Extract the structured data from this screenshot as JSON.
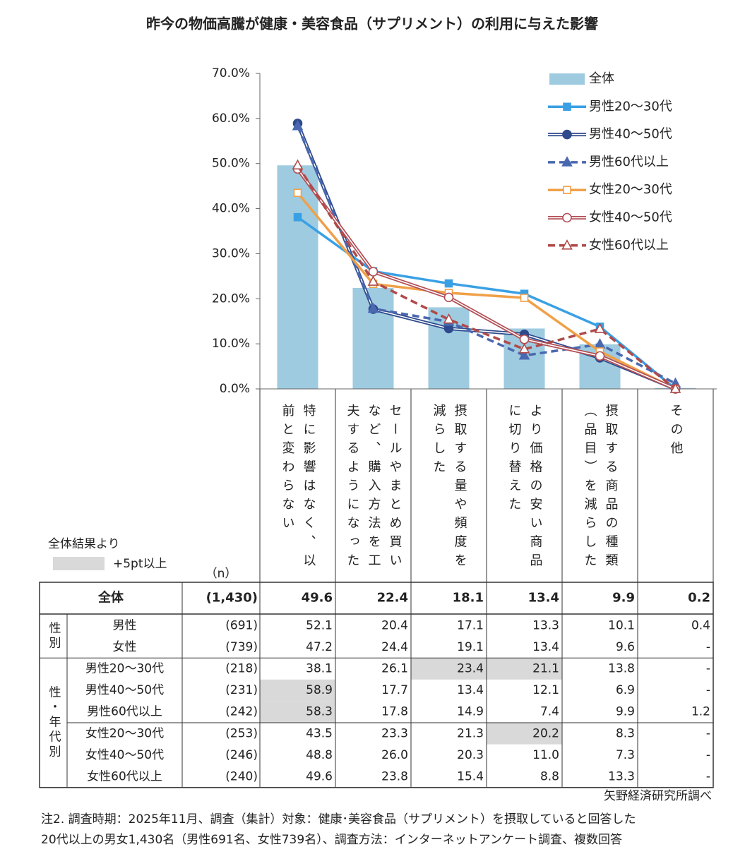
{
  "chart_data": {
    "type": "bar_line",
    "title": "昨今の物価高騰が健康・美容食品（サプリメント）の利用に与えた影響",
    "categories": [
      "特に影響はなく、以前と変わらない",
      "セールやまとめ買いなど、購入方法を工夫するようになった",
      "摂取する量や頻度を減らした",
      "より価格の安い商品に切り替えた",
      "摂取する商品の種類（品目）を減らした",
      "その他"
    ],
    "ylim": [
      0,
      70
    ],
    "yticks": [
      {
        "value": 0,
        "label": "0.0%"
      },
      {
        "value": 10,
        "label": "10.0%"
      },
      {
        "value": 20,
        "label": "20.0%"
      },
      {
        "value": 30,
        "label": "30.0%"
      },
      {
        "value": 40,
        "label": "40.0%"
      },
      {
        "value": 50,
        "label": "50.0%"
      },
      {
        "value": 60,
        "label": "60.0%"
      },
      {
        "value": 70,
        "label": "70.0%"
      }
    ],
    "series": [
      {
        "name": "全体",
        "type": "bar",
        "color": "#9ecbe0",
        "values": [
          49.6,
          22.4,
          18.1,
          13.4,
          9.9,
          0.2
        ]
      },
      {
        "name": "男性20～30代",
        "type": "line",
        "color": "#3aa0e4",
        "marker": "square",
        "open": false,
        "dashed": false,
        "double": false,
        "values": [
          38.1,
          26.1,
          23.4,
          21.1,
          13.8,
          0
        ]
      },
      {
        "name": "男性40～50代",
        "type": "line",
        "color": "#2e4a8c",
        "marker": "circle",
        "open": false,
        "dashed": false,
        "double": true,
        "values": [
          58.9,
          17.7,
          13.4,
          12.1,
          6.9,
          0
        ]
      },
      {
        "name": "男性60代以上",
        "type": "line",
        "color": "#4a68b0",
        "marker": "triangle",
        "open": false,
        "dashed": true,
        "double": false,
        "values": [
          58.3,
          17.8,
          14.9,
          7.4,
          9.9,
          1.2
        ]
      },
      {
        "name": "女性20～30代",
        "type": "line",
        "color": "#f0a048",
        "marker": "square",
        "open": true,
        "dashed": false,
        "double": false,
        "values": [
          43.5,
          23.3,
          21.3,
          20.2,
          8.3,
          0
        ]
      },
      {
        "name": "女性40～50代",
        "type": "line",
        "color": "#b24f55",
        "marker": "circle",
        "open": true,
        "dashed": false,
        "double": true,
        "values": [
          48.8,
          26.0,
          20.3,
          11.0,
          7.3,
          0
        ]
      },
      {
        "name": "女性60代以上",
        "type": "line",
        "color": "#b04a4a",
        "marker": "triangle",
        "open": true,
        "dashed": true,
        "double": false,
        "values": [
          49.6,
          23.8,
          15.4,
          8.8,
          13.3,
          0
        ]
      }
    ]
  },
  "table": {
    "note_title": "全体結果より",
    "note_legend": "+5pt以上",
    "n_header": "（n）",
    "total": {
      "label": "全体",
      "n": "(1,430)",
      "cells": [
        "49.6",
        "22.4",
        "18.1",
        "13.4",
        "9.9",
        "0.2"
      ]
    },
    "groups": [
      {
        "label": "性別",
        "rows": [
          {
            "label": "男性",
            "n": "(691)",
            "cells": [
              "52.1",
              "20.4",
              "17.1",
              "13.3",
              "10.1",
              "0.4"
            ],
            "shaded": [
              false,
              false,
              false,
              false,
              false,
              false
            ]
          },
          {
            "label": "女性",
            "n": "(739)",
            "cells": [
              "47.2",
              "24.4",
              "19.1",
              "13.4",
              "9.6",
              "-"
            ],
            "shaded": [
              false,
              false,
              false,
              false,
              false,
              false
            ]
          }
        ]
      },
      {
        "label": "性・年代別",
        "rows": [
          {
            "label": "男性20～30代",
            "n": "(218)",
            "cells": [
              "38.1",
              "26.1",
              "23.4",
              "21.1",
              "13.8",
              "-"
            ],
            "shaded": [
              false,
              false,
              true,
              true,
              false,
              false
            ]
          },
          {
            "label": "男性40～50代",
            "n": "(231)",
            "cells": [
              "58.9",
              "17.7",
              "13.4",
              "12.1",
              "6.9",
              "-"
            ],
            "shaded": [
              true,
              false,
              false,
              false,
              false,
              false
            ]
          },
          {
            "label": "男性60代以上",
            "n": "(242)",
            "cells": [
              "58.3",
              "17.8",
              "14.9",
              "7.4",
              "9.9",
              "1.2"
            ],
            "shaded": [
              true,
              false,
              false,
              false,
              false,
              false
            ]
          },
          {
            "label": "女性20～30代",
            "n": "(253)",
            "cells": [
              "43.5",
              "23.3",
              "21.3",
              "20.2",
              "8.3",
              "-"
            ],
            "shaded": [
              false,
              false,
              false,
              true,
              false,
              false
            ]
          },
          {
            "label": "女性40～50代",
            "n": "(246)",
            "cells": [
              "48.8",
              "26.0",
              "20.3",
              "11.0",
              "7.3",
              "-"
            ],
            "shaded": [
              false,
              false,
              false,
              false,
              false,
              false
            ]
          },
          {
            "label": "女性60代以上",
            "n": "(240)",
            "cells": [
              "49.6",
              "23.8",
              "15.4",
              "8.8",
              "13.3",
              "-"
            ],
            "shaded": [
              false,
              false,
              false,
              false,
              false,
              false
            ]
          }
        ]
      }
    ],
    "source": "矢野経済研究所調べ"
  },
  "notes": [
    "注2.  調査時期：2025年11月、調査（集計）対象：健康･美容食品（サプリメント）を摂取していると回答した",
    "20代以上の男女1,430名（男性691名、女性739名）、調査方法：インターネットアンケート調査、複数回答"
  ]
}
